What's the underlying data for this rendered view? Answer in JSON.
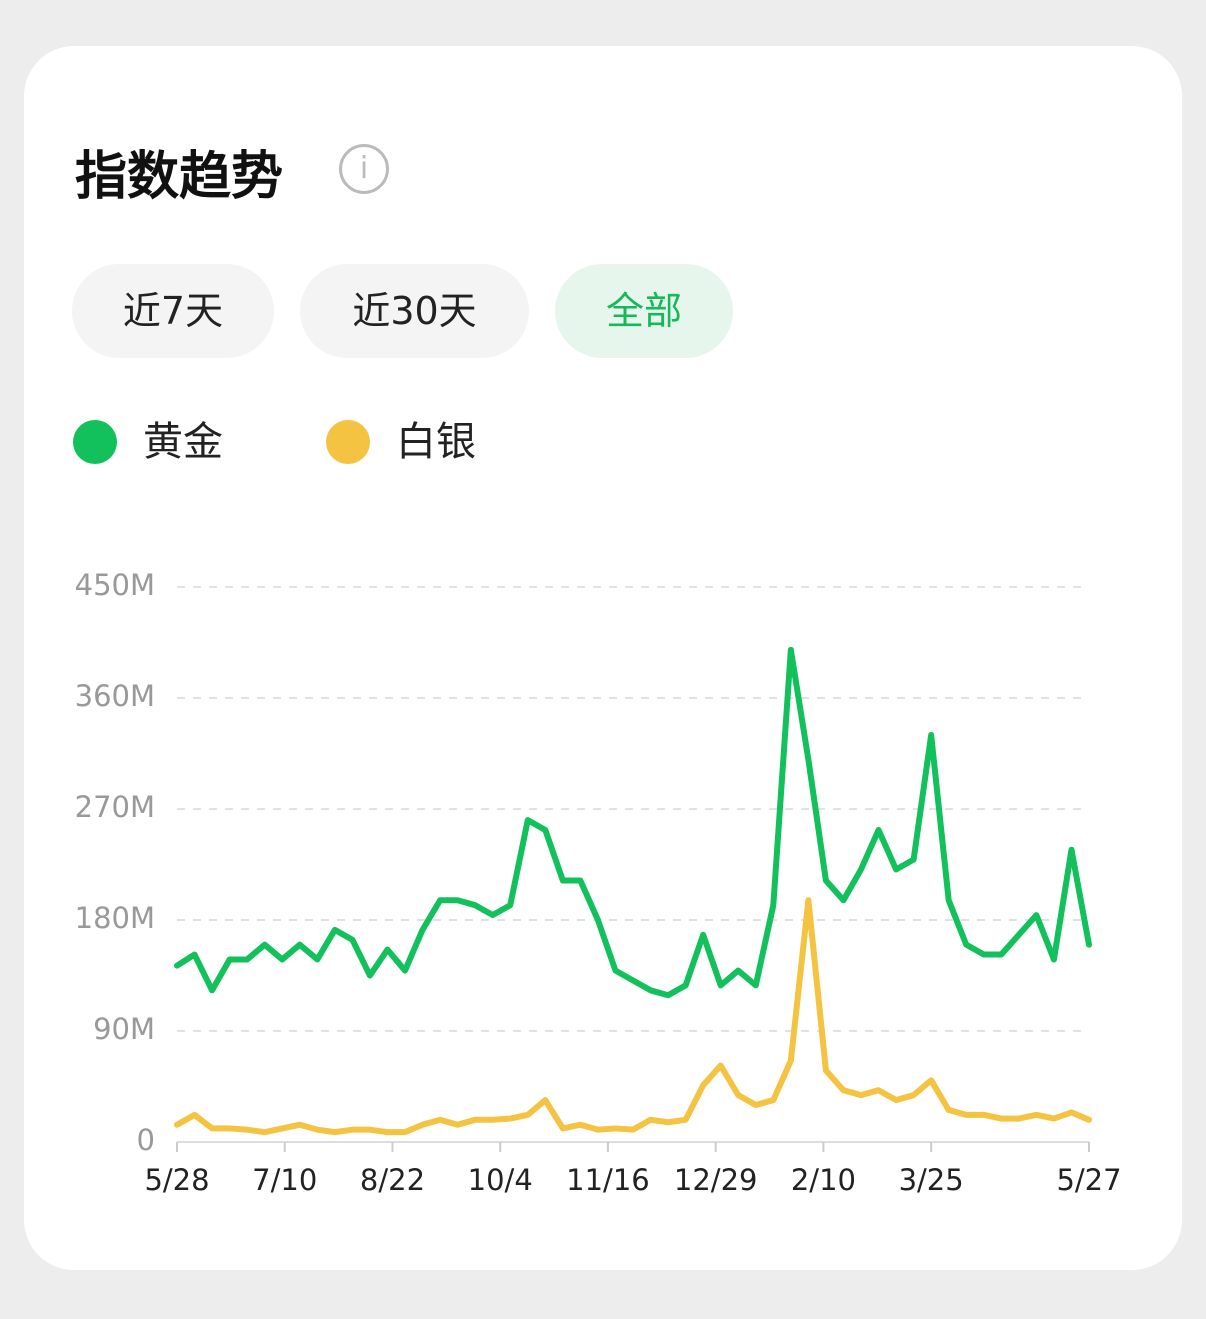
{
  "header": {
    "title": "指数趋势"
  },
  "tabs": [
    "近7天",
    "近30天",
    "全部"
  ],
  "chart_data": {
    "type": "line",
    "x": [
      0,
      7,
      14,
      21,
      28,
      35,
      42,
      49,
      56,
      63,
      70,
      77,
      84,
      91,
      98,
      105,
      112,
      119,
      126,
      133,
      140,
      147,
      154,
      161,
      168,
      175,
      182,
      189,
      196,
      203,
      210,
      217,
      224,
      231,
      238,
      245,
      252,
      259,
      266,
      273,
      280,
      287,
      294,
      301,
      308,
      315,
      322,
      329,
      336,
      343,
      350,
      357,
      364
    ],
    "xlim": [
      0,
      364
    ],
    "xticks": [
      {
        "value": 0,
        "label": "5/28"
      },
      {
        "value": 43,
        "label": "7/10"
      },
      {
        "value": 86,
        "label": "8/22"
      },
      {
        "value": 129,
        "label": "10/4"
      },
      {
        "value": 172,
        "label": "11/16"
      },
      {
        "value": 215,
        "label": "12/29"
      },
      {
        "value": 258,
        "label": "2/10"
      },
      {
        "value": 301,
        "label": "3/25"
      },
      {
        "value": 364,
        "label": "5/27"
      }
    ],
    "ylim": [
      0,
      450
    ],
    "yticks": [
      0,
      {
        "value": 90,
        "label": "90M"
      },
      {
        "value": 180,
        "label": "180M"
      },
      {
        "value": 270,
        "label": "270M"
      },
      {
        "value": 360,
        "label": "360M"
      },
      {
        "value": 450,
        "label": "450M"
      }
    ],
    "grid": true,
    "series": [
      {
        "name": "黄金",
        "color": "#13c15c",
        "values": [
          143,
          152,
          123,
          148,
          148,
          160,
          148,
          160,
          148,
          172,
          164,
          135,
          156,
          139,
          172,
          196,
          196,
          192,
          184,
          192,
          261,
          253,
          212,
          212,
          180,
          139,
          131,
          123,
          119,
          127,
          168,
          127,
          139,
          127,
          192,
          399,
          310,
          212,
          196,
          221,
          253,
          221,
          229,
          330,
          196,
          160,
          152,
          152,
          168,
          184,
          148,
          237,
          160
        ]
      },
      {
        "name": "白银",
        "color": "#f5c342",
        "values": [
          14,
          22,
          11,
          11,
          10,
          8,
          11,
          14,
          10,
          8,
          10,
          10,
          8,
          8,
          14,
          18,
          14,
          18,
          18,
          19,
          22,
          34,
          11,
          14,
          10,
          11,
          10,
          18,
          16,
          18,
          46,
          62,
          38,
          30,
          34,
          66,
          196,
          58,
          42,
          38,
          42,
          34,
          38,
          50,
          26,
          22,
          22,
          19,
          19,
          22,
          19,
          24,
          18
        ]
      }
    ]
  }
}
